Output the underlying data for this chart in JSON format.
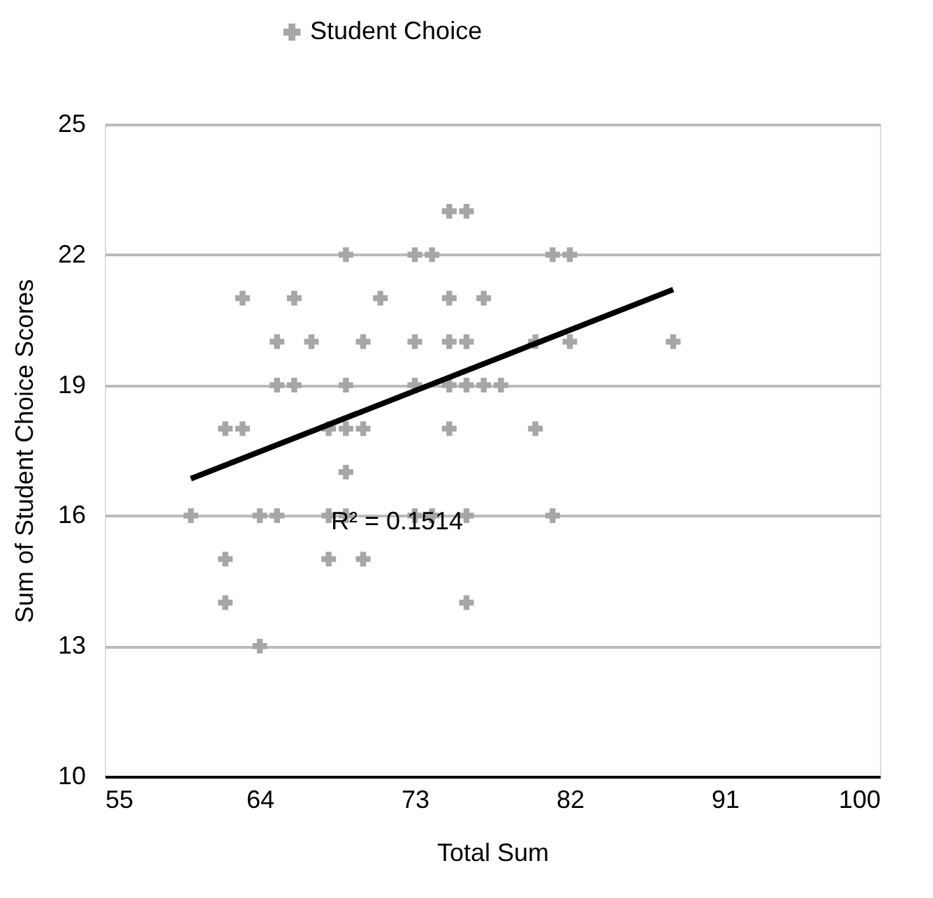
{
  "chart_data": {
    "type": "scatter",
    "xlabel": "Total Sum",
    "ylabel": "Sum of Student Choice Scores",
    "xlim": [
      55,
      100
    ],
    "xticks": [
      55,
      64,
      73,
      82,
      91,
      100
    ],
    "ylim": [
      10,
      25
    ],
    "yticks": [
      10,
      13,
      16,
      19,
      22,
      25
    ],
    "grid": "y",
    "legend": "top",
    "marker": "cross",
    "annotations": [
      "R² = 0.1514"
    ],
    "series": [
      {
        "name": "Student Choice",
        "color": "#a6a6a6",
        "type": "scatter",
        "x": [
          64,
          62,
          76,
          62,
          68,
          70,
          60,
          64,
          65,
          68,
          69,
          73,
          74,
          76,
          81,
          69,
          62,
          63,
          68,
          69,
          70,
          75,
          80,
          65,
          66,
          69,
          73,
          75,
          76,
          77,
          78,
          65,
          67,
          70,
          73,
          75,
          76,
          80,
          82,
          88,
          63,
          66,
          71,
          75,
          77,
          69,
          73,
          74,
          81,
          82,
          75,
          76
        ],
        "values": [
          13,
          14,
          14,
          15,
          15,
          15,
          16,
          16,
          16,
          16,
          16,
          16,
          16,
          16,
          16,
          17,
          18,
          18,
          18,
          18,
          18,
          18,
          18,
          19,
          19,
          19,
          19,
          19,
          19,
          19,
          19,
          20,
          20,
          20,
          20,
          20,
          20,
          20,
          20,
          20,
          21,
          21,
          21,
          21,
          21,
          22,
          22,
          22,
          22,
          22,
          23,
          23
        ]
      },
      {
        "color": "#000000",
        "type": "line",
        "line_style": "solid",
        "marker": "none",
        "x": [
          60,
          88
        ],
        "values": [
          16.85,
          21.2
        ]
      }
    ]
  }
}
